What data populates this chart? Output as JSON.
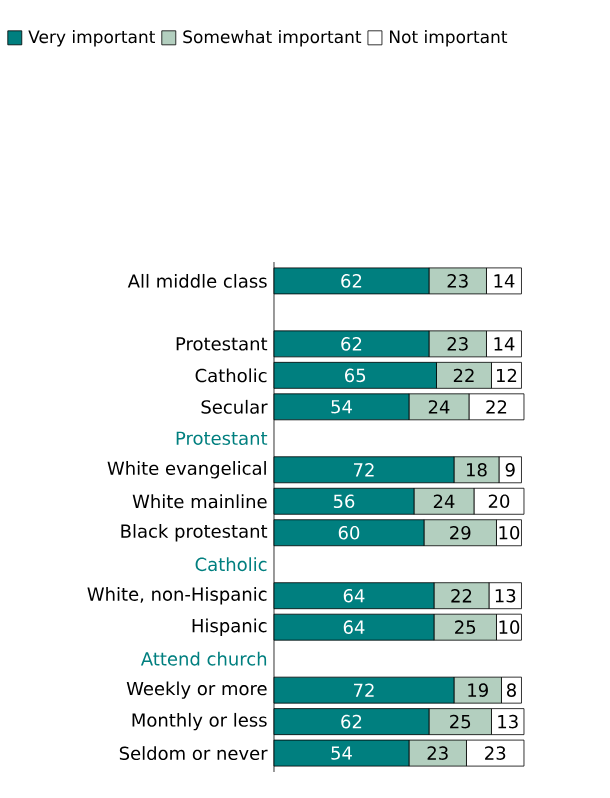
{
  "chart_data": {
    "type": "bar",
    "orientation": "horizontal",
    "stacked": true,
    "data_labels": true,
    "legend": "top left",
    "categories": [
      "All middle class",
      null,
      "Protestant",
      "Catholic",
      "Secular",
      "Protestant",
      "White evangelical",
      "White mainline",
      "Black protestant",
      "Catholic",
      "White, non-Hispanic",
      "Hispanic",
      "Attend church",
      "Weekly or more",
      "Monthly or less",
      "Seldom or never"
    ],
    "series": [
      {
        "name": "Very important",
        "color": "#007f7f",
        "values": [
          62,
          null,
          62,
          65,
          54,
          null,
          72,
          56,
          60,
          null,
          64,
          64,
          null,
          72,
          62,
          54
        ]
      },
      {
        "name": "Somewhat important",
        "color": "#b3cfbf",
        "values": [
          23,
          null,
          23,
          22,
          24,
          null,
          18,
          24,
          29,
          null,
          22,
          25,
          null,
          19,
          25,
          23
        ]
      },
      {
        "name": "Not important",
        "color": "#ffffff",
        "values": [
          14,
          null,
          14,
          12,
          22,
          null,
          9,
          20,
          10,
          null,
          13,
          10,
          null,
          8,
          13,
          23
        ]
      }
    ]
  }
}
